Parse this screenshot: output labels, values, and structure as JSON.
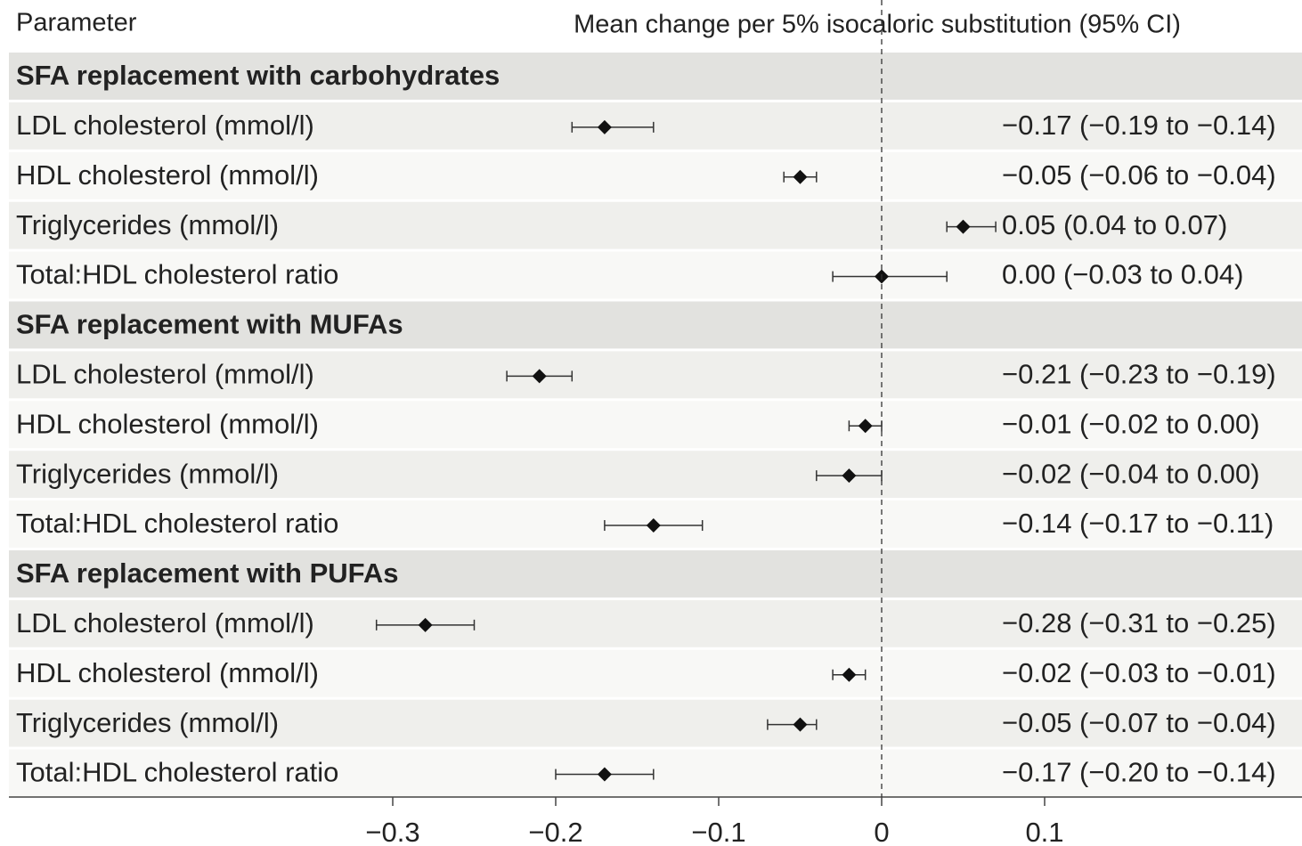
{
  "chart_data": {
    "type": "forest",
    "header_left": "Parameter",
    "header_right": "Mean change per 5% isocaloric substitution  (95% CI)",
    "xlim": [
      -0.3,
      0.1
    ],
    "xticks": [
      {
        "value": -0.3,
        "label": "−0.3"
      },
      {
        "value": -0.2,
        "label": "−0.2"
      },
      {
        "value": -0.1,
        "label": "−0.1"
      },
      0,
      0.1
    ],
    "groups": [
      {
        "title": "SFA replacement with carbohydrates",
        "labels": [
          "LDL cholesterol (mmol/l)",
          "HDL cholesterol (mmol/l)",
          "Triglycerides (mmol/l)",
          "Total:HDL cholesterol ratio"
        ],
        "values": [
          -0.17,
          -0.05,
          0.05,
          0.0
        ],
        "lower": [
          -0.19,
          -0.06,
          0.04,
          -0.03
        ],
        "upper": [
          -0.14,
          -0.04,
          0.07,
          0.04
        ],
        "value_labels": [
          "−0.17 (−0.19 to −0.14)",
          "−0.05 (−0.06 to −0.04)",
          "0.05 (0.04 to 0.07)",
          "0.00 (−0.03 to 0.04)"
        ]
      },
      {
        "title": "SFA replacement with MUFAs",
        "labels": [
          "LDL cholesterol (mmol/l)",
          "HDL cholesterol (mmol/l)",
          "Triglycerides (mmol/l)",
          "Total:HDL cholesterol ratio"
        ],
        "values": [
          -0.21,
          -0.01,
          -0.02,
          -0.14
        ],
        "lower": [
          -0.23,
          -0.02,
          -0.04,
          -0.17
        ],
        "upper": [
          -0.19,
          0.0,
          0.0,
          -0.11
        ],
        "value_labels": [
          "−0.21 (−0.23 to −0.19)",
          "−0.01 (−0.02 to 0.00)",
          "−0.02 (−0.04 to 0.00)",
          "−0.14 (−0.17 to −0.11)"
        ]
      },
      {
        "title": "SFA replacement with PUFAs",
        "labels": [
          "LDL cholesterol (mmol/l)",
          "HDL cholesterol (mmol/l)",
          "Triglycerides (mmol/l)",
          "Total:HDL cholesterol ratio"
        ],
        "values": [
          -0.28,
          -0.02,
          -0.05,
          -0.17
        ],
        "lower": [
          -0.31,
          -0.03,
          -0.07,
          -0.2
        ],
        "upper": [
          -0.25,
          -0.01,
          -0.04,
          -0.14
        ],
        "value_labels": [
          "−0.28 (−0.31 to  −0.25)",
          "−0.02 (−0.03 to −0.01)",
          "−0.05 (−0.07 to −0.04)",
          "−0.17 (−0.20 to  −0.14)"
        ]
      }
    ],
    "marker_color": "#111111"
  }
}
